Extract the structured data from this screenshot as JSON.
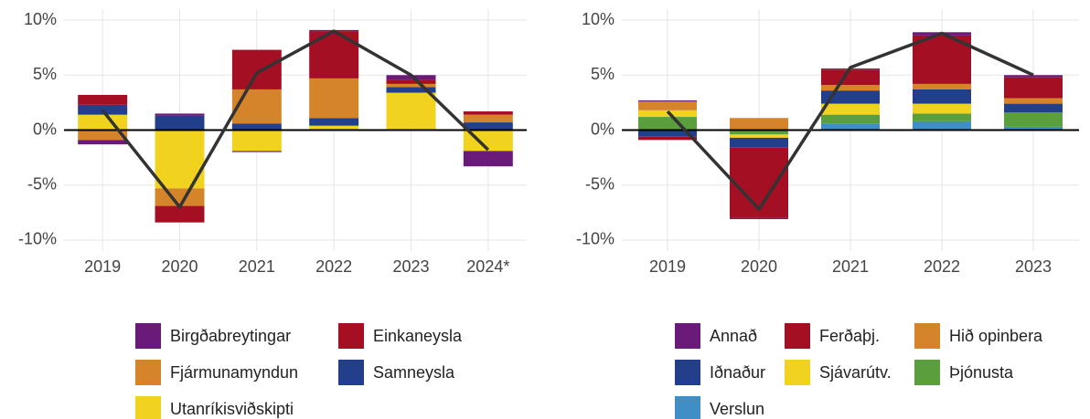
{
  "chart_data": [
    {
      "type": "bar",
      "stacked": true,
      "grid": true,
      "legend_columns": 2,
      "categories": [
        "2019",
        "2020",
        "2021",
        "2022",
        "2023",
        "2024*"
      ],
      "ylim": [
        -11,
        11
      ],
      "yticks": [
        {
          "value": -10,
          "label": "-10%"
        },
        {
          "value": -5,
          "label": "-5%"
        },
        {
          "value": 0,
          "label": "0%"
        },
        {
          "value": 5,
          "label": "5%"
        },
        {
          "value": 10,
          "label": "10%"
        }
      ],
      "series": [
        {
          "name": "Utanríkisviðskipti",
          "color": "#f0d21f",
          "values": [
            1.4,
            -5.3,
            -1.9,
            0.4,
            3.4,
            -1.9
          ]
        },
        {
          "name": "Samneysla",
          "color": "#213f8b",
          "values": [
            0.9,
            1.3,
            0.6,
            0.7,
            0.5,
            0.7
          ]
        },
        {
          "name": "Fjármunamyndun",
          "color": "#d6842a",
          "values": [
            -0.9,
            -1.6,
            3.1,
            3.6,
            0.3,
            0.7
          ]
        },
        {
          "name": "Einkaneysla",
          "color": "#a50f24",
          "values": [
            0.9,
            -1.5,
            3.6,
            4.3,
            0.4,
            0.3
          ]
        },
        {
          "name": "Birgðabreytingar",
          "color": "#6a1b7a",
          "values": [
            -0.4,
            0.2,
            -0.1,
            0.1,
            0.4,
            -1.4
          ]
        }
      ],
      "legend_order": [
        4,
        3,
        2,
        1,
        0
      ],
      "line": {
        "color": "#333333",
        "values": [
          1.8,
          -7.0,
          5.2,
          9.0,
          5.0,
          -1.8
        ]
      }
    },
    {
      "type": "bar",
      "stacked": true,
      "grid": true,
      "legend_columns": 3,
      "categories": [
        "2019",
        "2020",
        "2021",
        "2022",
        "2023"
      ],
      "ylim": [
        -11,
        11
      ],
      "yticks": [
        {
          "value": -10,
          "label": "-10%"
        },
        {
          "value": -5,
          "label": "-5%"
        },
        {
          "value": 0,
          "label": "0%"
        },
        {
          "value": 5,
          "label": "5%"
        },
        {
          "value": 10,
          "label": "10%"
        }
      ],
      "series": [
        {
          "name": "Verslun",
          "color": "#3f8ec6",
          "values": [
            0.0,
            0.0,
            0.6,
            0.8,
            0.3
          ]
        },
        {
          "name": "Þjónusta",
          "color": "#5a9e3e",
          "values": [
            1.2,
            -0.4,
            0.8,
            0.7,
            1.3
          ]
        },
        {
          "name": "Sjávarútv.",
          "color": "#f0d21f",
          "values": [
            0.6,
            -0.3,
            1.0,
            0.9,
            0.0
          ]
        },
        {
          "name": "Iðnaður",
          "color": "#213f8b",
          "values": [
            -0.6,
            -0.9,
            1.2,
            1.3,
            0.8
          ]
        },
        {
          "name": "Hið opinbera",
          "color": "#d6842a",
          "values": [
            0.8,
            1.1,
            0.5,
            0.5,
            0.5
          ]
        },
        {
          "name": "Ferðaþj.",
          "color": "#a50f24",
          "values": [
            -0.3,
            -6.4,
            1.4,
            4.4,
            1.9
          ]
        },
        {
          "name": "Annað",
          "color": "#6a1b7a",
          "values": [
            0.1,
            -0.1,
            0.1,
            0.3,
            0.2
          ]
        }
      ],
      "legend_order": [
        6,
        5,
        4,
        3,
        2,
        1,
        0
      ],
      "line": {
        "color": "#333333",
        "values": [
          1.7,
          -7.2,
          5.7,
          8.8,
          5.0
        ]
      }
    }
  ]
}
